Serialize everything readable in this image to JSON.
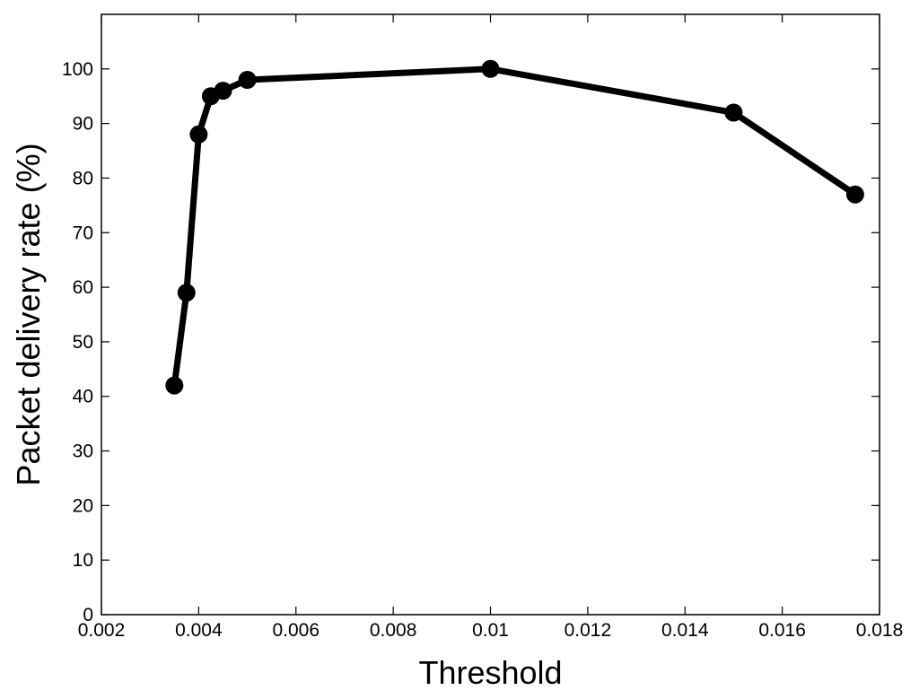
{
  "chart_data": {
    "type": "line",
    "title": "",
    "xlabel": "Threshold",
    "ylabel": "Packet delivery rate (%)",
    "xlim": [
      0.002,
      0.018
    ],
    "ylim": [
      0,
      110
    ],
    "x_ticks": [
      "0.002",
      "0.004",
      "0.006",
      "0.008",
      "0.01",
      "0.012",
      "0.014",
      "0.016",
      "0.018"
    ],
    "y_ticks": [
      "0",
      "10",
      "20",
      "30",
      "40",
      "50",
      "60",
      "70",
      "80",
      "90",
      "100"
    ],
    "grid": false,
    "legend": "none",
    "series": [
      {
        "color": "#000000",
        "marker": "circle",
        "x": [
          0.0035,
          0.00375,
          0.004,
          0.00425,
          0.0045,
          0.005,
          0.01,
          0.015,
          0.0175
        ],
        "y": [
          42,
          59,
          88,
          95,
          96,
          98,
          100,
          92,
          77
        ]
      }
    ]
  }
}
